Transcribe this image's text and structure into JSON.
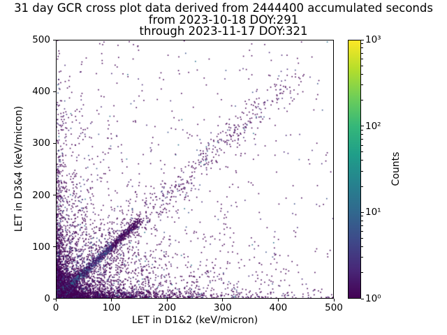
{
  "chart_data": {
    "type": "scatter",
    "title": "31 day GCR cross plot data derived from 2444400 accumulated seconds",
    "subtitle_lines": [
      "from 2023-10-18 DOY:291",
      "through 2023-11-17 DOY:321"
    ],
    "xlabel": "LET in D1&2 (keV/micron)",
    "ylabel": "LET in D3&4 (keV/micron)",
    "xlim": [
      0,
      500
    ],
    "ylim": [
      0,
      500
    ],
    "xticks": [
      0,
      100,
      200,
      300,
      400,
      500
    ],
    "yticks": [
      0,
      100,
      200,
      300,
      400,
      500
    ],
    "grid": false,
    "colorbar": {
      "label": "Counts",
      "scale": "log",
      "ticks": [
        "10⁰",
        "10¹",
        "10²",
        "10³"
      ],
      "tick_values": [
        1,
        10,
        100,
        1000
      ],
      "colormap": "viridis",
      "colormap_stops": [
        "#440154",
        "#482878",
        "#3e4989",
        "#31688e",
        "#26828e",
        "#1f9e89",
        "#35b779",
        "#6ece58",
        "#b5de2b",
        "#fde725"
      ]
    },
    "point_palette": {
      "purple": "#440154",
      "purple2": "#482878",
      "blue": "#3b528b",
      "blue2": "#2c728e",
      "teal": "#21918c",
      "green": "#35b779",
      "lightgreen": "#5ec962",
      "yellow": "#fde725"
    },
    "distribution": {
      "representation": "parametric density components approximating the 2D-histogram point cloud",
      "seed": 42,
      "components": [
        {
          "name": "origin-blob",
          "type": "exp2d",
          "count": 2800,
          "sx": 13,
          "sy": 13,
          "size": 2,
          "color_mode": "hot"
        },
        {
          "name": "diagonal-dense",
          "type": "diagonal",
          "count": 1500,
          "min": 0,
          "max": 150,
          "spread": 3.5,
          "power": 1.6,
          "size": 1.6,
          "color_mode": "warm"
        },
        {
          "name": "diagonal-sparse",
          "type": "diagonal",
          "count": 520,
          "min": 80,
          "max": 430,
          "spread": 14,
          "power": 1.2,
          "size": 1.6,
          "color_mode": "cold"
        },
        {
          "name": "x-axis-band",
          "type": "band-x",
          "count": 900,
          "decay": 130,
          "thickness": 7,
          "size": 1.6,
          "color_mode": "cold"
        },
        {
          "name": "y-axis-band",
          "type": "band-y",
          "count": 460,
          "decay": 115,
          "thickness": 7,
          "size": 1.6,
          "color_mode": "cold"
        },
        {
          "name": "lower-left-scatter",
          "type": "exp2d",
          "count": 1700,
          "sx": 95,
          "sy": 55,
          "size": 1.6,
          "color_mode": "cold"
        },
        {
          "name": "left-column-scatter",
          "type": "exp2d",
          "count": 650,
          "sx": 40,
          "sy": 130,
          "size": 1.6,
          "color_mode": "cold"
        },
        {
          "name": "mid-field-scatter",
          "type": "exp2d",
          "count": 560,
          "sx": 165,
          "sy": 145,
          "size": 1.6,
          "color_mode": "cold"
        },
        {
          "name": "background-sparse",
          "type": "uniform",
          "count": 270,
          "size": 1.6,
          "color_mode": "cold"
        }
      ]
    }
  }
}
